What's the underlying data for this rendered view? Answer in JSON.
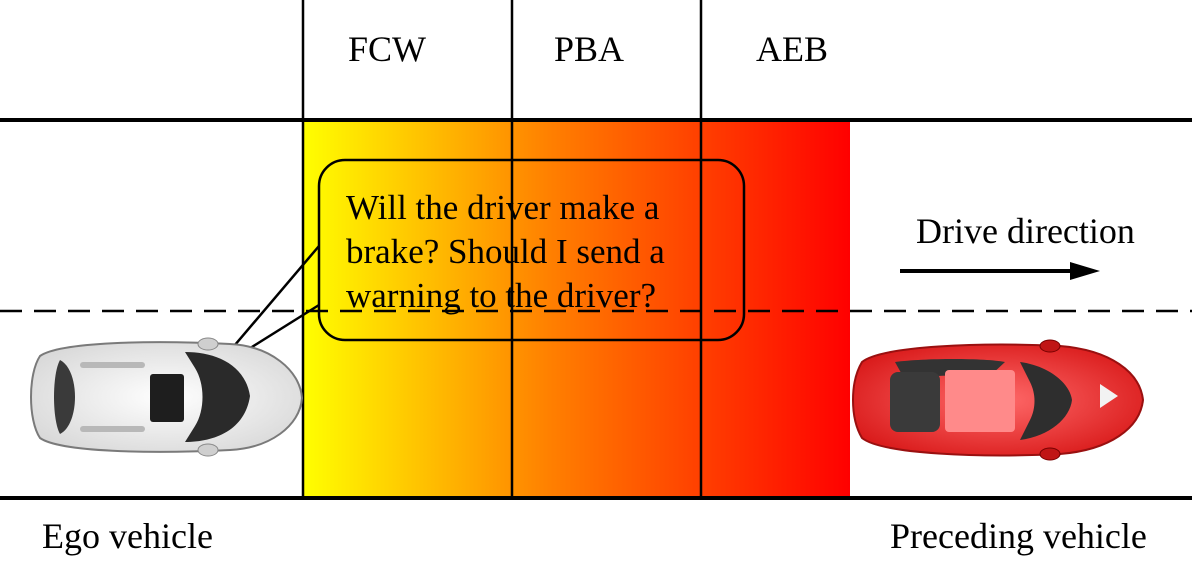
{
  "zones": {
    "fcw": "FCW",
    "pba": "PBA",
    "aeb": "AEB"
  },
  "bubble": {
    "text": "Will the driver make a brake? Should I send a warning to the driver?"
  },
  "direction": {
    "label": "Drive direction"
  },
  "captions": {
    "ego": "Ego vehicle",
    "preceding": "Preceding vehicle"
  },
  "colors": {
    "gradient_start": "#ffff00",
    "gradient_mid": "#ff8000",
    "gradient_end": "#ff0000",
    "ego_car": "#f2f2f2",
    "preceding_car": "#e62020",
    "line": "#000000"
  }
}
